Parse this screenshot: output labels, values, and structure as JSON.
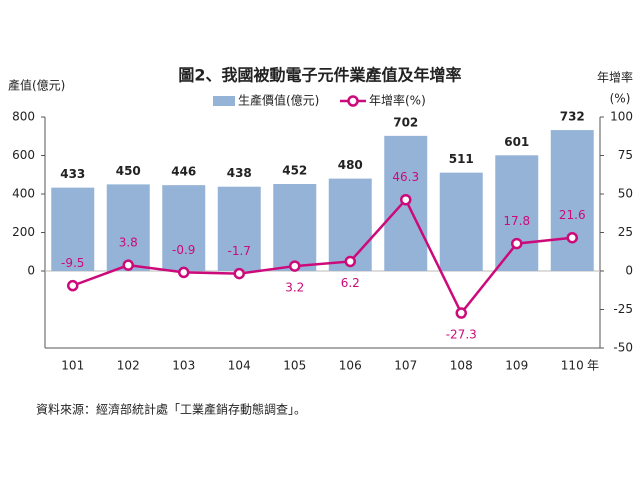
{
  "chart_data": {
    "type": "bar_line",
    "title": "圖2、我國被動電子元件業產值及年增率",
    "y_label": "產值(億元)",
    "y2_label": "年增率",
    "y2_unit": "(%)",
    "x_label": "年",
    "categories": [
      "101",
      "102",
      "103",
      "104",
      "105",
      "106",
      "107",
      "108",
      "109",
      "110"
    ],
    "series": [
      {
        "name": "生產價值(億元)",
        "color": "#95b3d7",
        "type": "bar",
        "values": [
          433,
          450,
          446,
          438,
          452,
          480,
          702,
          511,
          601,
          732
        ]
      },
      {
        "name": "年增率(%)",
        "color": "#cc0a7a",
        "type": "line",
        "axis": "y2",
        "values": [
          -9.5,
          3.8,
          -0.9,
          -1.7,
          3.2,
          6.2,
          46.3,
          -27.3,
          17.8,
          21.6
        ]
      }
    ],
    "ylim": [
      -400,
      800
    ],
    "yticks": [
      0,
      200,
      400,
      600,
      800
    ],
    "y2lim": [
      -50,
      100
    ],
    "y2ticks": [
      -50,
      -25,
      0,
      25,
      50,
      75,
      100
    ],
    "grid": false,
    "source": "資料來源：經濟部統計處「工業產銷存動態調查」。"
  }
}
